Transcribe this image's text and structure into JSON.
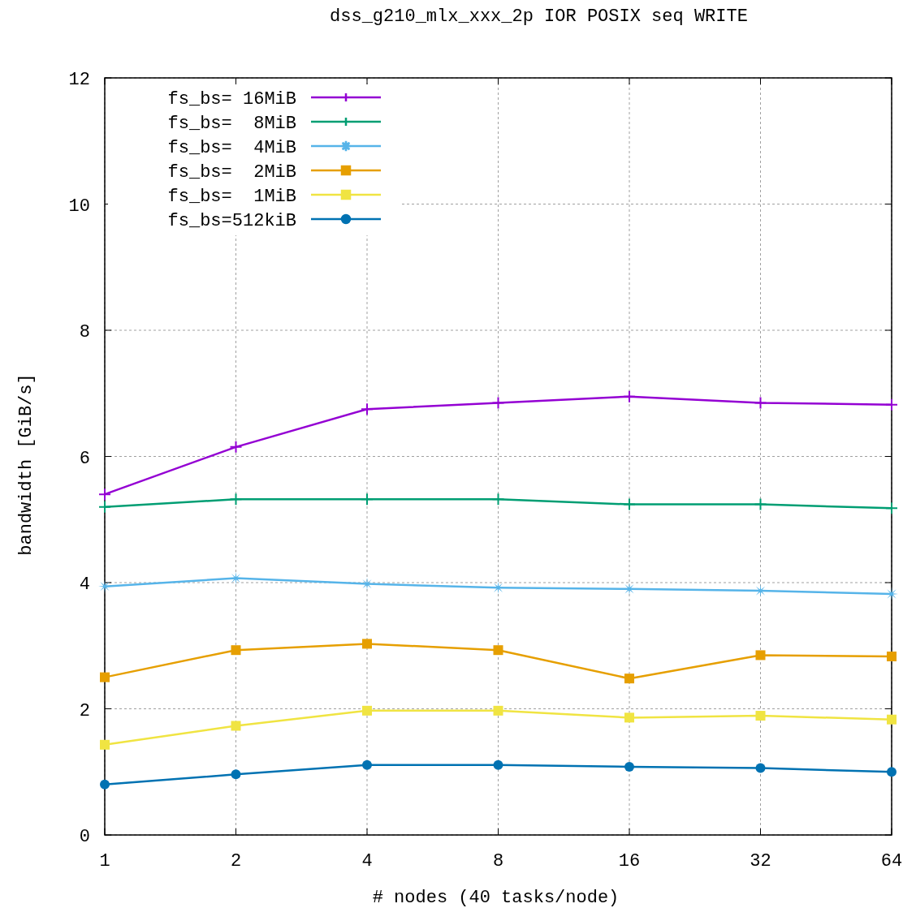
{
  "chart_data": {
    "type": "line",
    "title": "dss_g210_mlx_xxx_2p IOR POSIX seq WRITE",
    "xlabel": "# nodes (40 tasks/node)",
    "ylabel": "bandwidth [GiB/s]",
    "x": [
      1,
      2,
      4,
      8,
      16,
      32,
      64
    ],
    "log": "x",
    "xlim": [
      1,
      64
    ],
    "xticks": [
      1,
      2,
      4,
      8,
      16,
      32,
      64
    ],
    "ylim": [
      0,
      12
    ],
    "yticks": [
      0,
      2,
      4,
      6,
      8,
      10,
      12
    ],
    "grid": true,
    "legend": "top left",
    "series": [
      {
        "name": "fs_bs= 16MiB",
        "color": "#9400d3",
        "marker": "cross",
        "values": [
          5.4,
          6.15,
          6.75,
          6.85,
          6.95,
          6.85,
          6.82
        ]
      },
      {
        "name": "fs_bs=  8MiB",
        "color": "#009e73",
        "marker": "cross",
        "values": [
          5.2,
          5.32,
          5.32,
          5.32,
          5.24,
          5.24,
          5.18
        ]
      },
      {
        "name": "fs_bs=  4MiB",
        "color": "#56b4e9",
        "marker": "star",
        "values": [
          3.94,
          4.07,
          3.98,
          3.92,
          3.9,
          3.87,
          3.82
        ]
      },
      {
        "name": "fs_bs=  2MiB",
        "color": "#e69f00",
        "marker": "square",
        "values": [
          2.5,
          2.93,
          3.03,
          2.93,
          2.48,
          2.85,
          2.83
        ]
      },
      {
        "name": "fs_bs=  1MiB",
        "color": "#f0e442",
        "marker": "square",
        "values": [
          1.43,
          1.73,
          1.97,
          1.97,
          1.86,
          1.89,
          1.83
        ]
      },
      {
        "name": "fs_bs=512kiB",
        "color": "#0072b2",
        "marker": "circle",
        "values": [
          0.8,
          0.96,
          1.11,
          1.11,
          1.08,
          1.06,
          1.0
        ]
      }
    ]
  }
}
